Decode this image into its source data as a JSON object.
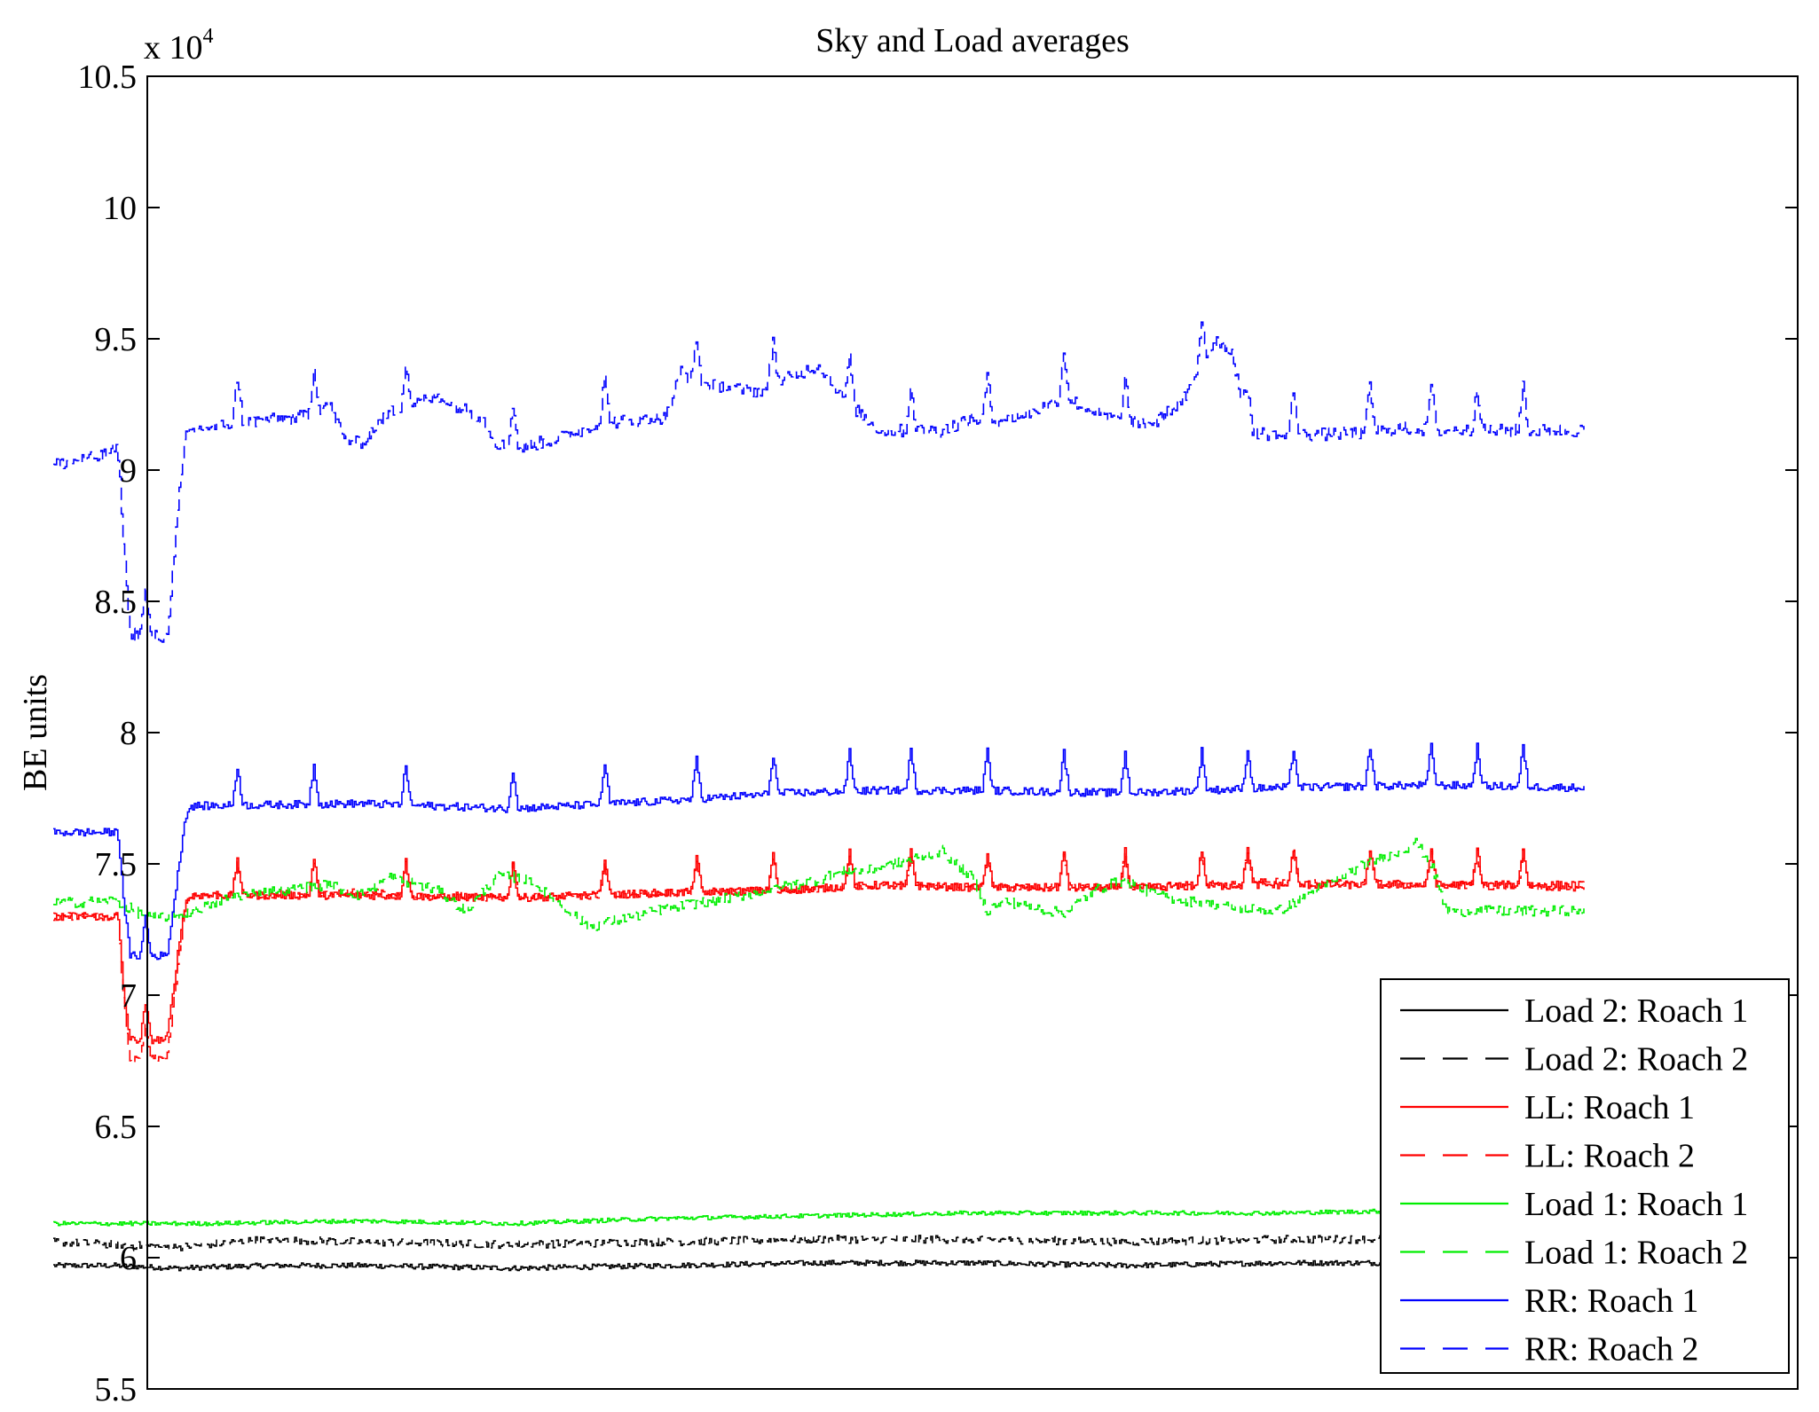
{
  "chart_data": {
    "type": "line",
    "title": "Sky and Load averages",
    "xlabel": "",
    "ylabel": "BE units",
    "y_multiplier_base": "x 10",
    "y_multiplier_exp": "4",
    "ylim": [
      5.5,
      10.5
    ],
    "xlim": [
      0,
      100
    ],
    "yticks": [
      "5.5",
      "6",
      "6.5",
      "7",
      "7.5",
      "8",
      "8.5",
      "9",
      "9.5",
      "10",
      "10.5"
    ],
    "legend_position": "bottom-right",
    "series": [
      {
        "name": "Load 2: Roach 1",
        "color": "#000000",
        "style": "solid",
        "x": [
          0,
          4,
          8,
          14,
          20,
          30,
          40,
          50,
          60,
          70,
          80,
          90,
          100
        ],
        "values": [
          5.97,
          5.97,
          5.96,
          5.97,
          5.97,
          5.96,
          5.97,
          5.98,
          5.98,
          5.97,
          5.98,
          5.98,
          5.98
        ],
        "noise": 0.01,
        "spike_h": 0
      },
      {
        "name": "Load 2: Roach 2",
        "color": "#000000",
        "style": "dashed",
        "x": [
          0,
          4,
          8,
          14,
          20,
          30,
          40,
          50,
          60,
          70,
          80,
          90,
          100
        ],
        "values": [
          6.06,
          6.05,
          6.04,
          6.07,
          6.06,
          6.05,
          6.06,
          6.07,
          6.07,
          6.06,
          6.07,
          6.07,
          6.07
        ],
        "noise": 0.015,
        "spike_h": 0
      },
      {
        "name": "LL: Roach 1",
        "color": "#ff0000",
        "style": "solid",
        "x": [
          0,
          4.2,
          4.6,
          5.0,
          7.4,
          8.2,
          8.6,
          9.0,
          20,
          30,
          40,
          48,
          54,
          60,
          70,
          80,
          90,
          100
        ],
        "values": [
          7.3,
          7.3,
          7.0,
          6.83,
          6.83,
          7.2,
          7.35,
          7.38,
          7.38,
          7.37,
          7.39,
          7.4,
          7.42,
          7.41,
          7.41,
          7.42,
          7.42,
          7.42
        ],
        "noise": 0.015,
        "spike_h": 0.28
      },
      {
        "name": "LL: Roach 2",
        "color": "#ff0000",
        "style": "dashed",
        "x": [
          0,
          4.2,
          4.6,
          5.0,
          7.4,
          8.2,
          8.6,
          9.0,
          20,
          30,
          40,
          48,
          54,
          60,
          70,
          80,
          90,
          100
        ],
        "values": [
          7.3,
          7.3,
          6.95,
          6.75,
          6.76,
          7.15,
          7.34,
          7.38,
          7.39,
          7.37,
          7.39,
          7.4,
          7.42,
          7.41,
          7.41,
          7.43,
          7.42,
          7.41
        ],
        "noise": 0.015,
        "spike_h": 0.25
      },
      {
        "name": "Load 1: Roach 1",
        "color": "#00ee00",
        "style": "solid",
        "x": [
          0,
          4,
          10,
          20,
          30,
          40,
          50,
          60,
          70,
          80,
          90,
          100
        ],
        "values": [
          6.13,
          6.13,
          6.13,
          6.14,
          6.13,
          6.15,
          6.16,
          6.17,
          6.17,
          6.17,
          6.18,
          6.18
        ],
        "noise": 0.008,
        "spike_h": 0
      },
      {
        "name": "Load 1: Roach 2",
        "color": "#00ee00",
        "style": "dashed",
        "x": [
          0,
          4,
          6,
          8,
          12,
          18,
          20,
          22,
          25,
          27,
          29,
          31,
          35,
          40,
          45,
          50,
          52,
          53,
          55,
          58,
          60,
          61,
          62,
          66,
          68,
          70,
          72,
          74,
          75,
          76,
          78,
          80,
          85,
          88,
          89,
          90,
          91,
          100
        ],
        "values": [
          7.35,
          7.36,
          7.3,
          7.3,
          7.38,
          7.42,
          7.38,
          7.45,
          7.4,
          7.32,
          7.46,
          7.44,
          7.26,
          7.33,
          7.38,
          7.44,
          7.48,
          7.47,
          7.5,
          7.55,
          7.45,
          7.32,
          7.36,
          7.31,
          7.4,
          7.44,
          7.38,
          7.36,
          7.35,
          7.34,
          7.33,
          7.32,
          7.48,
          7.55,
          7.58,
          7.5,
          7.32,
          7.32
        ],
        "noise": 0.02,
        "spike_h": 0
      },
      {
        "name": "RR: Roach 1",
        "color": "#0000ff",
        "style": "solid",
        "x": [
          0,
          4.2,
          4.6,
          5.0,
          7.4,
          8.2,
          8.6,
          9.0,
          20,
          30,
          40,
          48,
          54,
          60,
          70,
          80,
          90,
          100
        ],
        "values": [
          7.62,
          7.62,
          7.35,
          7.15,
          7.15,
          7.5,
          7.68,
          7.72,
          7.73,
          7.71,
          7.74,
          7.77,
          7.78,
          7.78,
          7.77,
          7.79,
          7.8,
          7.79
        ],
        "noise": 0.015,
        "spike_h": 0.3
      },
      {
        "name": "RR: Roach 2",
        "color": "#0000ff",
        "style": "dashed",
        "x": [
          0,
          3,
          4.2,
          4.6,
          5.0,
          7.4,
          8.2,
          8.6,
          9.0,
          12,
          16,
          18,
          19,
          20,
          22,
          25,
          28,
          29,
          30,
          33,
          36,
          40,
          41,
          42,
          46,
          48,
          50,
          52,
          54,
          56,
          58,
          60,
          61,
          64,
          66,
          68,
          70,
          72,
          74,
          75,
          76,
          77,
          78,
          80,
          85,
          88,
          90,
          100
        ],
        "values": [
          9.02,
          9.05,
          9.08,
          8.7,
          8.38,
          8.36,
          8.9,
          9.12,
          9.15,
          9.18,
          9.2,
          9.25,
          9.12,
          9.1,
          9.22,
          9.28,
          9.2,
          9.1,
          9.08,
          9.12,
          9.18,
          9.2,
          9.38,
          9.33,
          9.3,
          9.35,
          9.4,
          9.25,
          9.15,
          9.15,
          9.15,
          9.2,
          9.18,
          9.22,
          9.28,
          9.22,
          9.18,
          9.18,
          9.28,
          9.4,
          9.5,
          9.45,
          9.15,
          9.13,
          9.14,
          9.16,
          9.15,
          9.15
        ],
        "noise": 0.025,
        "spike_h": 0.35
      }
    ],
    "spike_x": [
      6,
      12,
      17,
      23,
      30,
      36,
      42,
      47,
      52,
      56,
      61,
      66,
      70,
      75,
      78,
      81,
      86,
      90,
      93,
      96
    ]
  }
}
